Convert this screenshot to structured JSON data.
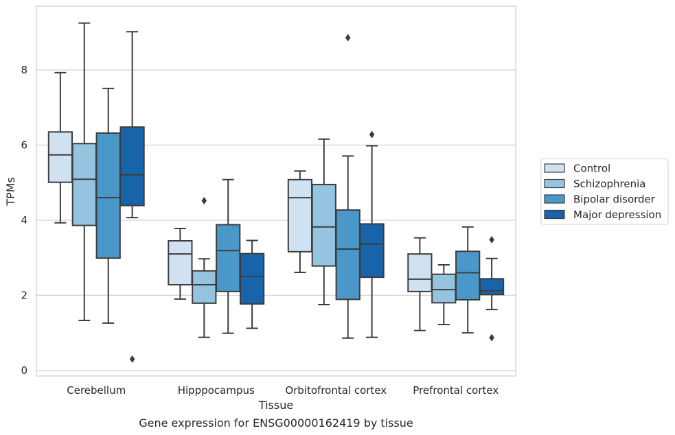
{
  "chart_data": {
    "type": "box",
    "title": "",
    "caption": "Gene expression for ENSG00000162419 by tissue",
    "xlabel": "Tissue",
    "ylabel": "TPMs",
    "ylim": [
      -0.15,
      9.7
    ],
    "yticks": [
      0,
      2,
      4,
      6,
      8
    ],
    "grid": "horizontal",
    "legend_position": "right",
    "categories": [
      "Cerebellum",
      "Hipppocampus",
      "Orbitofrontal cortex",
      "Prefrontal cortex"
    ],
    "series": [
      {
        "name": "Control",
        "color": "#d0e1f2",
        "boxes": [
          {
            "whisker_low": 3.93,
            "q1": 5.01,
            "median": 5.74,
            "q3": 6.35,
            "whisker_high": 7.93,
            "outliers": []
          },
          {
            "whisker_low": 1.9,
            "q1": 2.28,
            "median": 3.1,
            "q3": 3.45,
            "whisker_high": 3.78,
            "outliers": []
          },
          {
            "whisker_low": 2.61,
            "q1": 3.16,
            "median": 4.6,
            "q3": 5.08,
            "whisker_high": 5.31,
            "outliers": []
          },
          {
            "whisker_low": 1.06,
            "q1": 2.1,
            "median": 2.43,
            "q3": 3.1,
            "whisker_high": 3.53,
            "outliers": []
          }
        ]
      },
      {
        "name": "Schizophrenia",
        "color": "#94c4df",
        "boxes": [
          {
            "whisker_low": 1.33,
            "q1": 3.86,
            "median": 5.09,
            "q3": 6.04,
            "whisker_high": 9.25,
            "outliers": []
          },
          {
            "whisker_low": 0.88,
            "q1": 1.79,
            "median": 2.28,
            "q3": 2.65,
            "whisker_high": 2.97,
            "outliers": [
              4.52
            ]
          },
          {
            "whisker_low": 1.75,
            "q1": 2.78,
            "median": 3.82,
            "q3": 4.95,
            "whisker_high": 6.16,
            "outliers": []
          },
          {
            "whisker_low": 1.22,
            "q1": 1.8,
            "median": 2.15,
            "q3": 2.56,
            "whisker_high": 2.81,
            "outliers": []
          }
        ]
      },
      {
        "name": "Bipolar disorder",
        "color": "#4a98c9",
        "boxes": [
          {
            "whisker_low": 1.26,
            "q1": 2.99,
            "median": 4.6,
            "q3": 6.32,
            "whisker_high": 7.51,
            "outliers": []
          },
          {
            "whisker_low": 0.99,
            "q1": 2.1,
            "median": 3.19,
            "q3": 3.88,
            "whisker_high": 5.08,
            "outliers": []
          },
          {
            "whisker_low": 0.86,
            "q1": 1.89,
            "median": 3.23,
            "q3": 4.27,
            "whisker_high": 5.71,
            "outliers": [
              8.86
            ]
          },
          {
            "whisker_low": 1.0,
            "q1": 1.88,
            "median": 2.6,
            "q3": 3.17,
            "whisker_high": 3.82,
            "outliers": []
          }
        ]
      },
      {
        "name": "Major depression",
        "color": "#1764ab",
        "boxes": [
          {
            "whisker_low": 4.07,
            "q1": 4.39,
            "median": 5.21,
            "q3": 6.48,
            "whisker_high": 9.02,
            "outliers": [
              0.3
            ]
          },
          {
            "whisker_low": 1.12,
            "q1": 1.77,
            "median": 2.5,
            "q3": 3.11,
            "whisker_high": 3.46,
            "outliers": []
          },
          {
            "whisker_low": 0.88,
            "q1": 2.48,
            "median": 3.36,
            "q3": 3.9,
            "whisker_high": 5.98,
            "outliers": [
              6.28
            ]
          },
          {
            "whisker_low": 1.62,
            "q1": 2.02,
            "median": 2.12,
            "q3": 2.44,
            "whisker_high": 2.98,
            "outliers": [
              3.48,
              0.87
            ]
          }
        ]
      }
    ]
  }
}
